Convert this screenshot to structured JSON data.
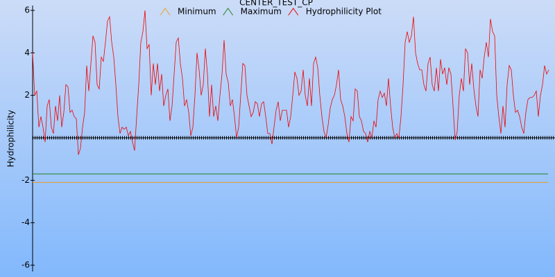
{
  "chart_data": {
    "type": "line",
    "title": "CENTER_TEST_CP",
    "ylabel": "Hydrophilicity",
    "ylim": [
      -6,
      6
    ],
    "yticks": [
      -6,
      -4,
      -2,
      2,
      4,
      6
    ],
    "zero_line": true,
    "reference_lines": [
      {
        "name": "Minimum",
        "color": "#e8a020",
        "value": -2.1
      },
      {
        "name": "Maximum",
        "color": "#208020",
        "value": -1.7
      }
    ],
    "series": [
      {
        "name": "Hydrophilicity Plot",
        "color": "#ee0000",
        "values": [
          4.0,
          2.0,
          2.2,
          0.5,
          1.0,
          0.5,
          -0.2,
          1.5,
          1.8,
          0.5,
          0.2,
          1.5,
          0.8,
          2.0,
          0.5,
          1.2,
          2.5,
          2.4,
          1.2,
          1.3,
          1.0,
          0.9,
          -0.8,
          -0.5,
          0.5,
          1.2,
          3.4,
          2.2,
          3.5,
          4.8,
          4.5,
          2.5,
          2.3,
          3.8,
          3.6,
          4.5,
          5.5,
          5.7,
          4.5,
          3.8,
          2.5,
          1.0,
          0.2,
          0.5,
          0.4,
          0.5,
          0.1,
          0.3,
          -0.2,
          -0.6,
          1.0,
          2.5,
          4.5,
          5.0,
          6.0,
          4.2,
          4.4,
          2.0,
          3.5,
          2.5,
          3.5,
          2.2,
          3.0,
          1.5,
          2.0,
          2.3,
          0.8,
          1.5,
          3.0,
          4.5,
          4.7,
          3.5,
          2.8,
          1.5,
          1.8,
          1.2,
          0.1,
          0.5,
          2.0,
          4.0,
          3.2,
          2.0,
          2.5,
          4.2,
          3.0,
          1.0,
          2.5,
          1.0,
          1.5,
          0.8,
          2.0,
          3.0,
          4.6,
          3.0,
          2.6,
          1.5,
          1.8,
          1.0,
          0.0,
          0.5,
          2.0,
          3.5,
          3.4,
          2.0,
          1.5,
          1.0,
          1.2,
          1.7,
          1.6,
          1.0,
          1.6,
          1.7,
          1.0,
          0.2,
          0.2,
          -0.3,
          0.5,
          1.3,
          1.7,
          0.8,
          1.3,
          1.3,
          1.3,
          0.5,
          1.0,
          2.0,
          3.1,
          2.8,
          2.0,
          2.2,
          3.2,
          2.0,
          1.5,
          2.8,
          1.5,
          3.5,
          3.8,
          3.3,
          2.0,
          1.0,
          0.3,
          0.0,
          0.6,
          1.4,
          1.8,
          2.0,
          2.5,
          3.2,
          1.8,
          1.5,
          1.0,
          0.2,
          -0.2,
          1.0,
          0.8,
          2.3,
          2.2,
          1.0,
          0.8,
          0.3,
          0.2,
          -0.2,
          0.3,
          0.0,
          0.8,
          0.5,
          1.8,
          2.2,
          1.9,
          2.1,
          1.5,
          2.8,
          1.5,
          0.5,
          0.0,
          0.2,
          0.0,
          1.0,
          2.5,
          4.5,
          5.0,
          4.5,
          4.8,
          5.7,
          4.0,
          3.5,
          3.2,
          3.2,
          2.5,
          2.2,
          3.5,
          3.8,
          2.5,
          2.2,
          3.3,
          2.2,
          3.7,
          3.0,
          3.3,
          2.5,
          3.3,
          3.0,
          1.5,
          -0.1,
          0.3,
          2.0,
          2.8,
          2.2,
          4.2,
          4.0,
          2.5,
          3.5,
          2.3,
          1.5,
          1.0,
          3.2,
          2.8,
          3.8,
          4.5,
          3.8,
          5.6,
          5.0,
          4.8,
          2.0,
          1.0,
          0.2,
          1.5,
          0.5,
          2.5,
          3.4,
          3.2,
          2.0,
          1.2,
          1.3,
          1.0,
          0.5,
          0.2,
          1.2,
          1.8,
          1.9,
          1.9,
          2.0,
          2.2,
          1.0,
          2.0,
          2.5,
          3.4,
          3.0,
          3.2
        ]
      }
    ]
  }
}
